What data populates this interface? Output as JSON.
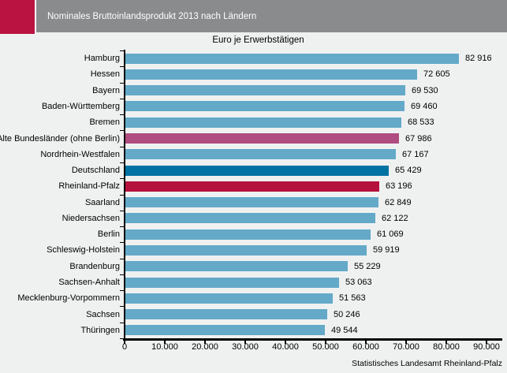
{
  "header": {
    "title": "Nominales Bruttoinlandsprodukt 2013 nach Ländern"
  },
  "subtitle": "Euro je Erwerbstätigen",
  "footer": "Statistisches Landesamt Rheinland-Pfalz",
  "colors": {
    "logo": "#bb1341",
    "header_bar": "#898b8c",
    "page_bg": "#eff1f1",
    "axis": "#000000"
  },
  "chart_data": {
    "type": "bar",
    "orientation": "horizontal",
    "title": "Nominales Bruttoinlandsprodukt 2013 nach Ländern",
    "subtitle": "Euro je Erwerbstätigen",
    "source": "Statistisches Landesamt Rheinland-Pfalz",
    "xlim": [
      0,
      90000
    ],
    "x_tick_labels": [
      "0",
      "10.000",
      "20.000",
      "30.000",
      "40.000",
      "50.000",
      "60.000",
      "70.000",
      "80.000",
      "90.000"
    ],
    "grid": false,
    "legend": false,
    "colors": {
      "default": "#64a9c8",
      "alte_bundeslaender": "#af4c80",
      "deutschland": "#0073a3",
      "rheinland_pfalz": "#b5123e"
    },
    "rows": [
      {
        "label": "Hamburg",
        "value": 82916,
        "display": "82 916",
        "color": "default"
      },
      {
        "label": "Hessen",
        "value": 72605,
        "display": "72 605",
        "color": "default"
      },
      {
        "label": "Bayern",
        "value": 69530,
        "display": "69 530",
        "color": "default"
      },
      {
        "label": "Baden-Württemberg",
        "value": 69460,
        "display": "69 460",
        "color": "default"
      },
      {
        "label": "Bremen",
        "value": 68533,
        "display": "68 533",
        "color": "default"
      },
      {
        "label": "Alte Bundesländer (ohne Berlin)",
        "value": 67986,
        "display": "67 986",
        "color": "alte_bundeslaender"
      },
      {
        "label": "Nordrhein-Westfalen",
        "value": 67167,
        "display": "67 167",
        "color": "default"
      },
      {
        "label": "Deutschland",
        "value": 65429,
        "display": "65 429",
        "color": "deutschland"
      },
      {
        "label": "Rheinland-Pfalz",
        "value": 63196,
        "display": "63 196",
        "color": "rheinland_pfalz"
      },
      {
        "label": "Saarland",
        "value": 62849,
        "display": "62 849",
        "color": "default"
      },
      {
        "label": "Niedersachsen",
        "value": 62122,
        "display": "62 122",
        "color": "default"
      },
      {
        "label": "Berlin",
        "value": 61069,
        "display": "61 069",
        "color": "default"
      },
      {
        "label": "Schleswig-Holstein",
        "value": 59919,
        "display": "59 919",
        "color": "default"
      },
      {
        "label": "Brandenburg",
        "value": 55229,
        "display": "55 229",
        "color": "default"
      },
      {
        "label": "Sachsen-Anhalt",
        "value": 53063,
        "display": "53 063",
        "color": "default"
      },
      {
        "label": "Mecklenburg-Vorpommern",
        "value": 51563,
        "display": "51 563",
        "color": "default"
      },
      {
        "label": "Sachsen",
        "value": 50246,
        "display": "50 246",
        "color": "default"
      },
      {
        "label": "Thüringen",
        "value": 49544,
        "display": "49 544",
        "color": "default"
      }
    ]
  }
}
